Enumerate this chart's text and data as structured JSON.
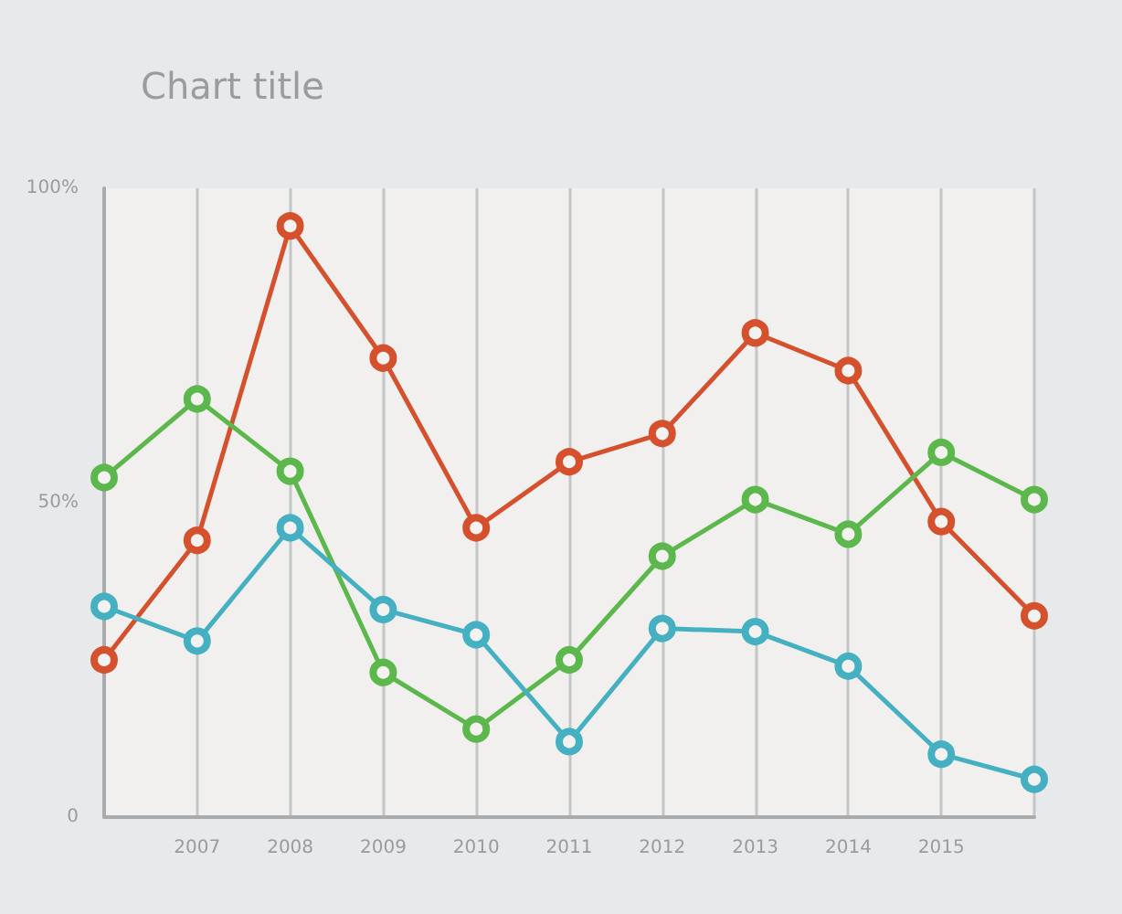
{
  "chart_data": {
    "type": "line",
    "title": "Chart title",
    "categories": [
      null,
      "2007",
      "2008",
      "2009",
      "2010",
      "2011",
      "2012",
      "2013",
      "2014",
      "2015",
      null
    ],
    "series": [
      {
        "color": "#d5502c",
        "values": [
          25,
          44,
          94,
          73,
          46,
          56.5,
          61,
          77,
          71,
          47,
          32
        ]
      },
      {
        "color": "#5cb84c",
        "values": [
          54,
          66.5,
          55,
          23,
          14,
          25,
          41.5,
          50.5,
          45,
          58,
          50.5
        ]
      },
      {
        "color": "#45b0c2",
        "values": [
          33.5,
          28,
          46,
          33,
          29,
          12,
          30,
          29.5,
          24,
          10,
          6
        ]
      }
    ],
    "ylim": [
      0,
      100
    ],
    "yticks": [
      0,
      {
        "value": 50,
        "label": "50%"
      },
      {
        "value": 100,
        "label": "100%"
      }
    ],
    "grid": "x",
    "marker": "circle"
  }
}
